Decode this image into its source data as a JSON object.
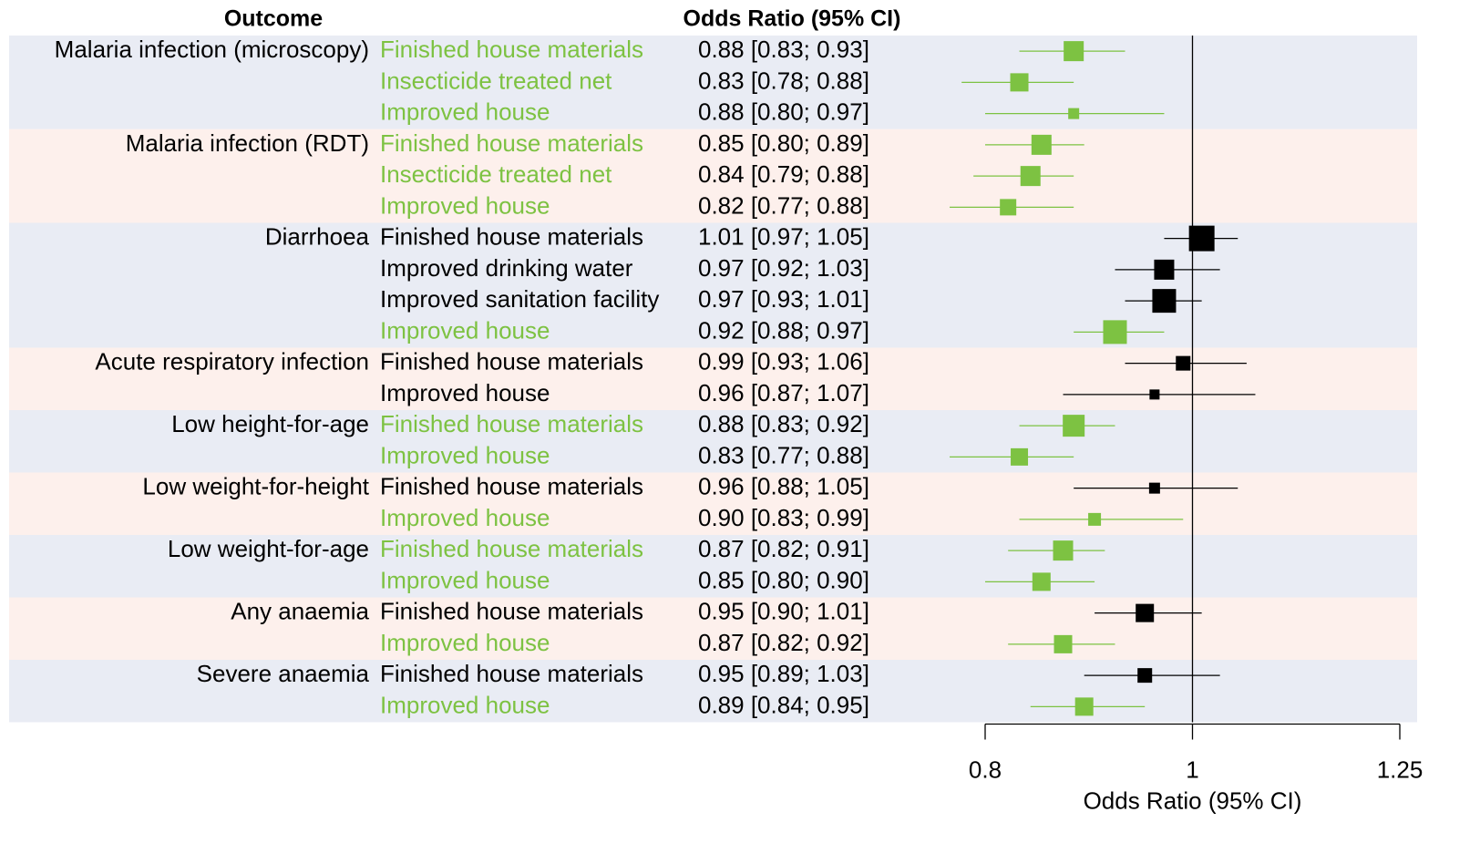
{
  "chart_data": {
    "type": "forest",
    "headers": {
      "outcome": "Outcome",
      "estimate": "Odds Ratio (95% CI)"
    },
    "xlabel": "Odds Ratio (95% CI)",
    "log_x": true,
    "xlim": [
      0.8,
      1.25
    ],
    "xticks": [
      0.8,
      1,
      1.25
    ],
    "reference_line": 1,
    "band_colors": [
      "#e9ecf4",
      "#fdf0ec"
    ],
    "groups": [
      {
        "outcome": "Malaria infection (microscopy)",
        "rows": [
          {
            "exposure": "Finished house materials",
            "color": "#7dc242",
            "value": 0.88,
            "lower": 0.83,
            "upper": 0.93,
            "weight": 22,
            "label": "0.88 [0.83; 0.93]"
          },
          {
            "exposure": "Insecticide treated net",
            "color": "#7dc242",
            "value": 0.83,
            "lower": 0.78,
            "upper": 0.88,
            "weight": 20,
            "label": "0.83 [0.78; 0.88]"
          },
          {
            "exposure": "Improved house",
            "color": "#7dc242",
            "value": 0.88,
            "lower": 0.8,
            "upper": 0.97,
            "weight": 12,
            "label": "0.88 [0.80; 0.97]"
          }
        ]
      },
      {
        "outcome": "Malaria infection (RDT)",
        "rows": [
          {
            "exposure": "Finished house materials",
            "color": "#7dc242",
            "value": 0.85,
            "lower": 0.8,
            "upper": 0.89,
            "weight": 22,
            "label": "0.85 [0.80; 0.89]"
          },
          {
            "exposure": "Insecticide treated net",
            "color": "#7dc242",
            "value": 0.84,
            "lower": 0.79,
            "upper": 0.88,
            "weight": 22,
            "label": "0.84 [0.79; 0.88]"
          },
          {
            "exposure": "Improved house",
            "color": "#7dc242",
            "value": 0.82,
            "lower": 0.77,
            "upper": 0.88,
            "weight": 18,
            "label": "0.82 [0.77; 0.88]"
          }
        ]
      },
      {
        "outcome": "Diarrhoea",
        "rows": [
          {
            "exposure": "Finished house materials",
            "color": "#000000",
            "value": 1.01,
            "lower": 0.97,
            "upper": 1.05,
            "weight": 28,
            "label": "1.01 [0.97; 1.05]"
          },
          {
            "exposure": "Improved drinking water",
            "color": "#000000",
            "value": 0.97,
            "lower": 0.92,
            "upper": 1.03,
            "weight": 22,
            "label": "0.97 [0.92; 1.03]"
          },
          {
            "exposure": "Improved sanitation facility",
            "color": "#000000",
            "value": 0.97,
            "lower": 0.93,
            "upper": 1.01,
            "weight": 26,
            "label": "0.97 [0.93; 1.01]"
          },
          {
            "exposure": "Improved house",
            "color": "#7dc242",
            "value": 0.92,
            "lower": 0.88,
            "upper": 0.97,
            "weight": 26,
            "label": "0.92 [0.88; 0.97]"
          }
        ]
      },
      {
        "outcome": "Acute respiratory infection",
        "rows": [
          {
            "exposure": "Finished house materials",
            "color": "#000000",
            "value": 0.99,
            "lower": 0.93,
            "upper": 1.06,
            "weight": 16,
            "label": "0.99 [0.93; 1.06]"
          },
          {
            "exposure": "Improved house",
            "color": "#000000",
            "value": 0.96,
            "lower": 0.87,
            "upper": 1.07,
            "weight": 11,
            "label": "0.96 [0.87; 1.07]"
          }
        ]
      },
      {
        "outcome": "Low height-for-age",
        "rows": [
          {
            "exposure": "Finished house materials",
            "color": "#7dc242",
            "value": 0.88,
            "lower": 0.83,
            "upper": 0.92,
            "weight": 24,
            "label": "0.88 [0.83; 0.92]"
          },
          {
            "exposure": "Improved house",
            "color": "#7dc242",
            "value": 0.83,
            "lower": 0.77,
            "upper": 0.88,
            "weight": 19,
            "label": "0.83 [0.77; 0.88]"
          }
        ]
      },
      {
        "outcome": "Low weight-for-height",
        "rows": [
          {
            "exposure": "Finished house materials",
            "color": "#000000",
            "value": 0.96,
            "lower": 0.88,
            "upper": 1.05,
            "weight": 12,
            "label": "0.96 [0.88; 1.05]"
          },
          {
            "exposure": "Improved house",
            "color": "#7dc242",
            "value": 0.9,
            "lower": 0.83,
            "upper": 0.99,
            "weight": 14,
            "label": "0.90 [0.83; 0.99]"
          }
        ]
      },
      {
        "outcome": "Low weight-for-age",
        "rows": [
          {
            "exposure": "Finished house materials",
            "color": "#7dc242",
            "value": 0.87,
            "lower": 0.82,
            "upper": 0.91,
            "weight": 22,
            "label": "0.87 [0.82; 0.91]"
          },
          {
            "exposure": "Improved house",
            "color": "#7dc242",
            "value": 0.85,
            "lower": 0.8,
            "upper": 0.9,
            "weight": 20,
            "label": "0.85 [0.80; 0.90]"
          }
        ]
      },
      {
        "outcome": "Any anaemia",
        "rows": [
          {
            "exposure": "Finished house materials",
            "color": "#000000",
            "value": 0.95,
            "lower": 0.9,
            "upper": 1.01,
            "weight": 20,
            "label": "0.95 [0.90; 1.01]"
          },
          {
            "exposure": "Improved house",
            "color": "#7dc242",
            "value": 0.87,
            "lower": 0.82,
            "upper": 0.92,
            "weight": 20,
            "label": "0.87 [0.82; 0.92]"
          }
        ]
      },
      {
        "outcome": "Severe anaemia",
        "rows": [
          {
            "exposure": "Finished house materials",
            "color": "#000000",
            "value": 0.95,
            "lower": 0.89,
            "upper": 1.03,
            "weight": 16,
            "label": "0.95 [0.89; 1.03]"
          },
          {
            "exposure": "Improved house",
            "color": "#7dc242",
            "value": 0.89,
            "lower": 0.84,
            "upper": 0.95,
            "weight": 20,
            "label": "0.89 [0.84; 0.95]"
          }
        ]
      }
    ]
  }
}
